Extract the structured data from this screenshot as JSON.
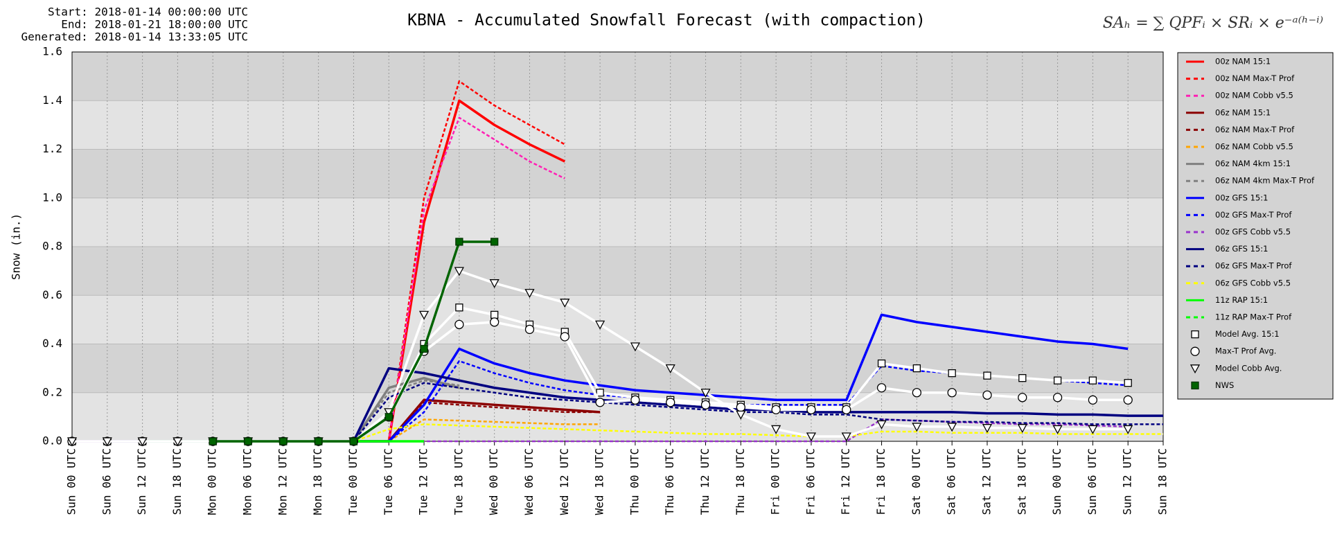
{
  "chart_data": {
    "type": "line",
    "title": "KBNA - Accumulated Snowfall Forecast (with compaction)",
    "header": [
      "Start: 2018-01-14 00:00:00 UTC",
      "End: 2018-01-21 18:00:00 UTC",
      "Generated: 2018-01-14 13:33:05 UTC"
    ],
    "formula": "SAₕ = ∑ QPFᵢ × SRᵢ × e⁻ᵃ⁽ʰ⁻ⁱ⁾",
    "y_label": "Snow (in.)",
    "ylim": [
      0,
      1.6
    ],
    "yticks": [
      {
        "value": 0,
        "label": "0.0"
      },
      0.2,
      0.4,
      0.6,
      0.8,
      {
        "value": 1,
        "label": "1.0"
      },
      1.2,
      1.4,
      1.6
    ],
    "grid": true,
    "legend": "right",
    "categories": [
      "Sun 00 UTC",
      "Sun 06 UTC",
      "Sun 12 UTC",
      "Sun 18 UTC",
      "Mon 00 UTC",
      "Mon 06 UTC",
      "Mon 12 UTC",
      "Mon 18 UTC",
      "Tue 00 UTC",
      "Tue 06 UTC",
      "Tue 12 UTC",
      "Tue 18 UTC",
      "Wed 00 UTC",
      "Wed 06 UTC",
      "Wed 12 UTC",
      "Wed 18 UTC",
      "Thu 00 UTC",
      "Thu 06 UTC",
      "Thu 12 UTC",
      "Thu 18 UTC",
      "Fri 00 UTC",
      "Fri 06 UTC",
      "Fri 12 UTC",
      "Fri 18 UTC",
      "Sat 00 UTC",
      "Sat 06 UTC",
      "Sat 12 UTC",
      "Sat 18 UTC",
      "Sun 00 UTC",
      "Sun 06 UTC",
      "Sun 12 UTC",
      "Sun 18 UTC"
    ],
    "series": [
      {
        "name": "00z NAM 15:1",
        "color": "#ff0000",
        "dash": false,
        "marker": null,
        "values": [
          0,
          0,
          0,
          0,
          0,
          0,
          0,
          0,
          0,
          0,
          0.9,
          1.4,
          1.3,
          1.22,
          1.15,
          null,
          null,
          null,
          null,
          null,
          null,
          null,
          null,
          null,
          null,
          null,
          null,
          null,
          null,
          null,
          null,
          null
        ]
      },
      {
        "name": "00z NAM Max-T Prof",
        "color": "#ff0000",
        "dash": true,
        "marker": null,
        "values": [
          0,
          0,
          0,
          0,
          0,
          0,
          0,
          0,
          0,
          0,
          1.0,
          1.48,
          1.38,
          1.3,
          1.22,
          null,
          null,
          null,
          null,
          null,
          null,
          null,
          null,
          null,
          null,
          null,
          null,
          null,
          null,
          null,
          null,
          null
        ]
      },
      {
        "name": "00z NAM Cobb v5.5",
        "color": "#ff1fb4",
        "dash": true,
        "marker": null,
        "values": [
          0,
          0,
          0,
          0,
          0,
          0,
          0,
          0,
          0,
          0,
          0.95,
          1.33,
          1.24,
          1.15,
          1.08,
          null,
          null,
          null,
          null,
          null,
          null,
          null,
          null,
          null,
          null,
          null,
          null,
          null,
          null,
          null,
          null,
          null
        ]
      },
      {
        "name": "06z NAM 15:1",
        "color": "#8b0000",
        "dash": false,
        "marker": null,
        "values": [
          null,
          0,
          0,
          0,
          0,
          0,
          0,
          0,
          0,
          0,
          0.17,
          0.16,
          0.15,
          0.14,
          0.13,
          0.12,
          null,
          null,
          null,
          null,
          null,
          null,
          null,
          null,
          null,
          null,
          null,
          null,
          null,
          null,
          null,
          null
        ]
      },
      {
        "name": "06z NAM Max-T Prof",
        "color": "#8b0000",
        "dash": true,
        "marker": null,
        "values": [
          null,
          0,
          0,
          0,
          0,
          0,
          0,
          0,
          0,
          0,
          0.16,
          0.15,
          0.14,
          0.13,
          0.12,
          0.12,
          null,
          null,
          null,
          null,
          null,
          null,
          null,
          null,
          null,
          null,
          null,
          null,
          null,
          null,
          null,
          null
        ]
      },
      {
        "name": "06z NAM Cobb v5.5",
        "color": "#ffa500",
        "dash": true,
        "marker": null,
        "values": [
          null,
          0,
          0,
          0,
          0,
          0,
          0,
          0,
          0,
          0,
          0.09,
          0.085,
          0.08,
          0.075,
          0.07,
          0.07,
          null,
          null,
          null,
          null,
          null,
          null,
          null,
          null,
          null,
          null,
          null,
          null,
          null,
          null,
          null,
          null
        ]
      },
      {
        "name": "06z NAM 4km 15:1",
        "color": "#808080",
        "dash": false,
        "marker": null,
        "values": [
          null,
          0,
          0,
          0,
          0,
          0,
          0,
          0,
          0,
          0.22,
          0.26,
          0.22,
          null,
          null,
          null,
          null,
          null,
          null,
          null,
          null,
          null,
          null,
          null,
          null,
          null,
          null,
          null,
          null,
          null,
          null,
          null,
          null
        ]
      },
      {
        "name": "06z NAM 4km Max-T Prof",
        "color": "#808080",
        "dash": true,
        "marker": null,
        "values": [
          null,
          0,
          0,
          0,
          0,
          0,
          0,
          0,
          0,
          0.2,
          0.25,
          0.23,
          null,
          null,
          null,
          null,
          null,
          null,
          null,
          null,
          null,
          null,
          null,
          null,
          null,
          null,
          null,
          null,
          null,
          null,
          null,
          null
        ]
      },
      {
        "name": "00z GFS 15:1",
        "color": "#0000ff",
        "dash": false,
        "marker": null,
        "values": [
          0,
          0,
          0,
          0,
          0,
          0,
          0,
          0,
          0,
          0,
          0.15,
          0.38,
          0.32,
          0.28,
          0.25,
          0.23,
          0.21,
          0.2,
          0.19,
          0.18,
          0.17,
          0.17,
          0.17,
          0.52,
          0.49,
          0.47,
          0.45,
          0.43,
          0.41,
          0.4,
          0.38,
          null
        ]
      },
      {
        "name": "00z GFS Max-T Prof",
        "color": "#0000ff",
        "dash": true,
        "marker": null,
        "values": [
          0,
          0,
          0,
          0,
          0,
          0,
          0,
          0,
          0,
          0,
          0.12,
          0.33,
          0.28,
          0.24,
          0.21,
          0.19,
          0.18,
          0.17,
          0.16,
          0.15,
          0.15,
          0.15,
          0.15,
          0.31,
          0.29,
          0.28,
          0.27,
          0.26,
          0.25,
          0.24,
          0.23,
          null
        ]
      },
      {
        "name": "00z GFS Cobb v5.5",
        "color": "#9932cc",
        "dash": true,
        "marker": null,
        "values": [
          0,
          0,
          0,
          0,
          0,
          0,
          0,
          0,
          0,
          0,
          0,
          0,
          0,
          0,
          0,
          0,
          0,
          0,
          0,
          0,
          0,
          0,
          0,
          0.09,
          0.085,
          0.08,
          0.075,
          0.07,
          0.07,
          0.065,
          0.06,
          null
        ]
      },
      {
        "name": "06z GFS 15:1",
        "color": "#000080",
        "dash": false,
        "marker": null,
        "values": [
          null,
          0,
          0,
          0,
          0,
          0,
          0,
          0,
          0,
          0.3,
          0.28,
          0.25,
          0.22,
          0.2,
          0.18,
          0.17,
          0.16,
          0.15,
          0.14,
          0.13,
          0.13,
          0.12,
          0.12,
          0.12,
          0.12,
          0.12,
          0.115,
          0.115,
          0.11,
          0.11,
          0.105,
          0.105
        ]
      },
      {
        "name": "06z GFS Max-T Prof",
        "color": "#000080",
        "dash": true,
        "marker": null,
        "values": [
          null,
          0,
          0,
          0,
          0,
          0,
          0,
          0,
          0,
          0.18,
          0.24,
          0.22,
          0.2,
          0.18,
          0.17,
          0.16,
          0.15,
          0.14,
          0.13,
          0.12,
          0.12,
          0.11,
          0.11,
          0.09,
          0.085,
          0.08,
          0.08,
          0.075,
          0.075,
          0.07,
          0.07,
          0.07
        ]
      },
      {
        "name": "06z GFS Cobb v5.5",
        "color": "#ffff00",
        "dash": true,
        "marker": null,
        "values": [
          null,
          0,
          0,
          0,
          0,
          0,
          0,
          0,
          0,
          0.05,
          0.07,
          0.065,
          0.06,
          0.055,
          0.05,
          0.045,
          0.04,
          0.035,
          0.03,
          0.03,
          0.025,
          0.02,
          0.02,
          0.04,
          0.04,
          0.035,
          0.035,
          0.035,
          0.03,
          0.03,
          0.03,
          0.03
        ]
      },
      {
        "name": "11z RAP 15:1",
        "color": "#00ff00",
        "dash": false,
        "marker": null,
        "values": [
          null,
          null,
          0,
          0,
          0,
          0,
          0,
          0,
          0,
          0,
          0,
          null,
          null,
          null,
          null,
          null,
          null,
          null,
          null,
          null,
          null,
          null,
          null,
          null,
          null,
          null,
          null,
          null,
          null,
          null,
          null,
          null
        ]
      },
      {
        "name": "11z RAP Max-T Prof",
        "color": "#00ff00",
        "dash": true,
        "marker": null,
        "values": [
          null,
          null,
          0,
          0,
          0,
          0,
          0,
          0,
          0,
          0,
          0,
          null,
          null,
          null,
          null,
          null,
          null,
          null,
          null,
          null,
          null,
          null,
          null,
          null,
          null,
          null,
          null,
          null,
          null,
          null,
          null,
          null
        ]
      },
      {
        "name": "Model Avg. 15:1",
        "color": "#ffffff",
        "dash": false,
        "marker": "square",
        "values": [
          0,
          0,
          0,
          0,
          0,
          0,
          0,
          0,
          0,
          0.1,
          0.4,
          0.55,
          0.52,
          0.48,
          0.45,
          0.2,
          0.18,
          0.17,
          0.16,
          0.15,
          0.14,
          0.14,
          0.14,
          0.32,
          0.3,
          0.28,
          0.27,
          0.26,
          0.25,
          0.25,
          0.24,
          null
        ]
      },
      {
        "name": "Max-T Prof Avg.",
        "color": "#ffffff",
        "dash": false,
        "marker": "circle",
        "values": [
          0,
          0,
          0,
          0,
          0,
          0,
          0,
          0,
          0,
          0.1,
          0.37,
          0.48,
          0.49,
          0.46,
          0.43,
          0.16,
          0.17,
          0.16,
          0.15,
          0.14,
          0.13,
          0.13,
          0.13,
          0.22,
          0.2,
          0.2,
          0.19,
          0.18,
          0.18,
          0.17,
          0.17,
          null
        ]
      },
      {
        "name": "Model Cobb Avg.",
        "color": "#ffffff",
        "dash": false,
        "marker": "triangle",
        "values": [
          0,
          0,
          0,
          0,
          0,
          0,
          0,
          0,
          0,
          0.12,
          0.52,
          0.7,
          0.65,
          0.61,
          0.57,
          0.48,
          0.39,
          0.3,
          0.2,
          0.11,
          0.05,
          0.02,
          0.02,
          0.07,
          0.06,
          0.06,
          0.055,
          0.055,
          0.05,
          0.05,
          0.05,
          null
        ]
      },
      {
        "name": "NWS",
        "color": "#006400",
        "dash": false,
        "marker": "filled-square",
        "values": [
          null,
          null,
          null,
          null,
          0,
          0,
          0,
          0,
          0,
          0.1,
          0.38,
          0.82,
          0.82,
          null,
          null,
          null,
          null,
          null,
          null,
          null,
          null,
          null,
          null,
          null,
          null,
          null,
          null,
          null,
          null,
          null,
          null,
          null
        ]
      }
    ]
  }
}
